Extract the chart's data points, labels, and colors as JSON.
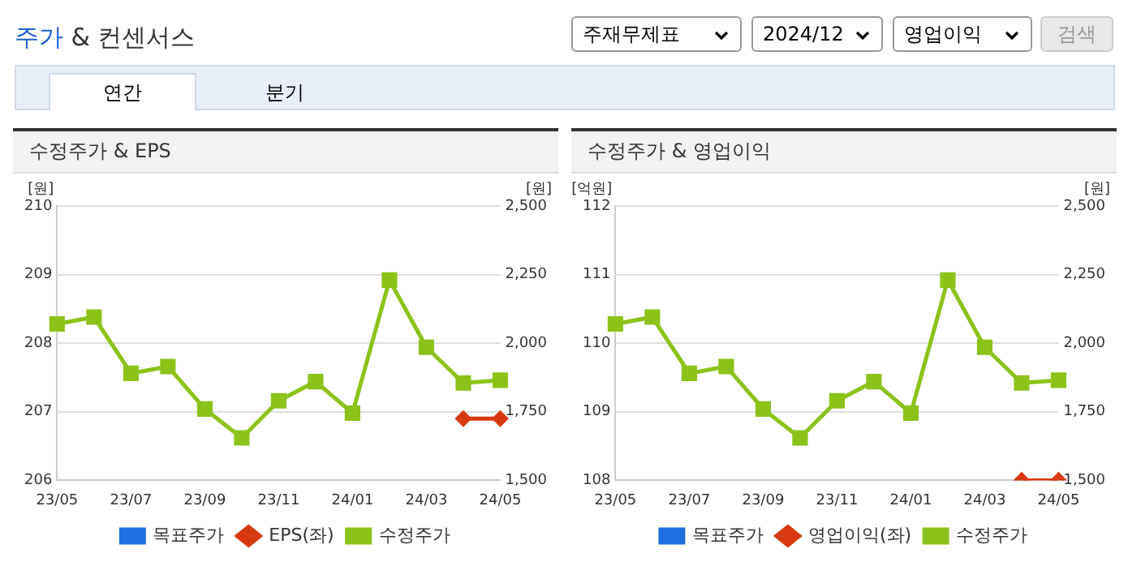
{
  "chart_data": [
    {
      "type": "other",
      "title": "주가 & 컨센서스",
      "annotations": [
        "주재무제표",
        "2024/12",
        "영업이익",
        "검색",
        "연간",
        "분기"
      ]
    },
    {
      "type": "line",
      "title": "수정주가 & EPS",
      "ylabel": "[원]",
      "y2label": "[원]",
      "categories": [
        "23/05",
        null,
        "23/07",
        null,
        "23/09",
        null,
        "23/11",
        null,
        "24/01",
        null,
        "24/03",
        null,
        "24/05"
      ],
      "series": [
        {
          "name": "목표주가",
          "color": "#1f6fe0",
          "marker": "square",
          "values": [
            null,
            null,
            null,
            null,
            null,
            null,
            null,
            null,
            null,
            null,
            null,
            null,
            null
          ]
        },
        {
          "name": "EPS(좌)",
          "color": "#d83a0f",
          "marker": "diamond",
          "values": [
            null,
            null,
            null,
            null,
            null,
            null,
            null,
            null,
            null,
            null,
            null,
            206.9,
            206.9
          ]
        },
        {
          "name": "수정주가",
          "color": "#8cc21a",
          "marker": "square",
          "axis": "y2",
          "values": [
            2070,
            2095,
            1890,
            1915,
            1760,
            1655,
            1790,
            1860,
            1745,
            2230,
            1985,
            1855,
            1865
          ]
        }
      ],
      "ylim": [
        206,
        210
      ],
      "yticks": [
        206,
        207,
        208,
        209,
        210
      ],
      "y2lim": [
        1500,
        2500
      ],
      "y2ticks": [
        {
          "value": 1500,
          "label": "1,500"
        },
        {
          "value": 1750,
          "label": "1,750"
        },
        {
          "value": 2000,
          "label": "2,000"
        },
        {
          "value": 2250,
          "label": "2,250"
        },
        {
          "value": 2500,
          "label": "2,500"
        }
      ],
      "grid": "y",
      "legend": "bottom"
    },
    {
      "type": "line",
      "title": "수정주가 & 영업이익",
      "ylabel": "[억원]",
      "y2label": "[원]",
      "categories": [
        "23/05",
        null,
        "23/07",
        null,
        "23/09",
        null,
        "23/11",
        null,
        "24/01",
        null,
        "24/03",
        null,
        "24/05"
      ],
      "series": [
        {
          "name": "목표주가",
          "color": "#1f6fe0",
          "marker": "square",
          "values": [
            null,
            null,
            null,
            null,
            null,
            null,
            null,
            null,
            null,
            null,
            null,
            null,
            null
          ]
        },
        {
          "name": "영업이익(좌)",
          "color": "#d83a0f",
          "marker": "diamond",
          "values": [
            null,
            null,
            null,
            null,
            null,
            null,
            null,
            null,
            null,
            null,
            null,
            108,
            108
          ]
        },
        {
          "name": "수정주가",
          "color": "#8cc21a",
          "marker": "square",
          "axis": "y2",
          "values": [
            2070,
            2095,
            1890,
            1915,
            1760,
            1655,
            1790,
            1860,
            1745,
            2230,
            1985,
            1855,
            1865
          ]
        }
      ],
      "ylim": [
        108,
        112
      ],
      "yticks": [
        108,
        109,
        110,
        111,
        112
      ],
      "y2lim": [
        1500,
        2500
      ],
      "y2ticks": [
        {
          "value": 1500,
          "label": "1,500"
        },
        {
          "value": 1750,
          "label": "1,750"
        },
        {
          "value": 2000,
          "label": "2,000"
        },
        {
          "value": 2250,
          "label": "2,250"
        },
        {
          "value": 2500,
          "label": "2,500"
        }
      ],
      "grid": "y",
      "legend": "bottom"
    }
  ]
}
